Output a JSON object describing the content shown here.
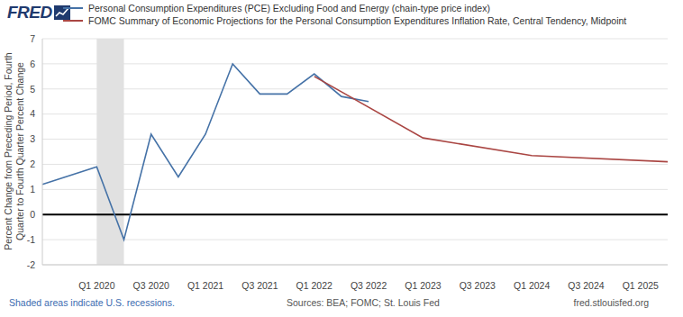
{
  "chart_data": {
    "type": "line",
    "logo": "FRED",
    "y_label": "Percent Change from Preceding Period, Fourth Quarter to Fourth Quarter Percent Change",
    "categories": [
      null,
      null,
      "Q1 2020",
      null,
      "Q3 2020",
      null,
      "Q1 2021",
      null,
      "Q3 2021",
      null,
      "Q1 2022",
      null,
      "Q3 2022",
      null,
      "Q1 2023",
      null,
      "Q3 2023",
      null,
      "Q1 2024",
      null,
      "Q3 2024",
      null,
      "Q1 2025",
      null
    ],
    "series": [
      {
        "name": "Personal Consumption Expenditures (PCE) Excluding Food and Energy (chain-type price index)",
        "color": "#4572a7",
        "values": [
          1.2,
          null,
          1.9,
          -1.0,
          3.2,
          1.5,
          3.2,
          6.0,
          4.8,
          4.8,
          5.6,
          4.7,
          4.5,
          null,
          null,
          null,
          null,
          null,
          null,
          null,
          null,
          null,
          null,
          null
        ]
      },
      {
        "name": "FOMC Summary of Economic Projections for the Personal Consumption Expenditures Inflation Rate, Central Tendency, Midpoint",
        "color": "#aa4643",
        "values": [
          null,
          null,
          null,
          null,
          null,
          null,
          null,
          null,
          null,
          null,
          5.5,
          null,
          null,
          null,
          3.05,
          null,
          null,
          null,
          2.35,
          null,
          null,
          null,
          null,
          2.1
        ]
      }
    ],
    "ylim": [
      -2,
      7
    ],
    "yticks": [
      -2,
      -1,
      0,
      1,
      2,
      3,
      4,
      5,
      6,
      7
    ],
    "grid": true,
    "recessions": [
      [
        2,
        3
      ]
    ],
    "note": "Shaded areas indicate U.S. recessions.",
    "source": "Sources: BEA; FOMC; St. Louis Fed",
    "url": "fred.stlouisfed.org"
  }
}
